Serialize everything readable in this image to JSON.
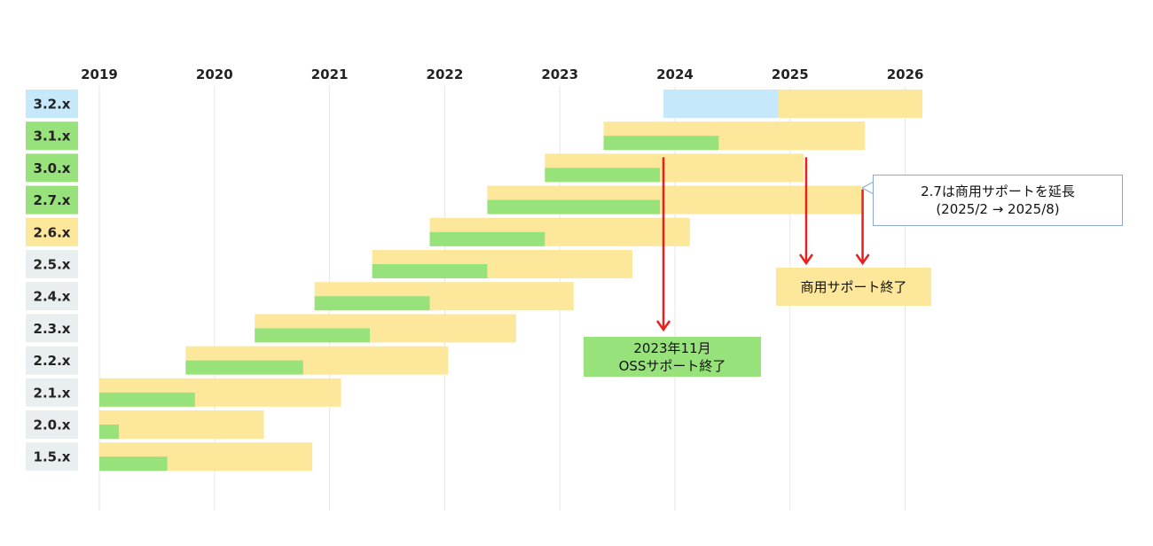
{
  "colors": {
    "oss": "#98e27c",
    "commercial": "#fde79a",
    "future": "#c6e8fb",
    "arrow": "#e8201e",
    "grid": "#e6e6e6",
    "label_neutral": "#e9eef0"
  },
  "chart_data": {
    "type": "bar",
    "orientation": "horizontal-timeline",
    "years": [
      "2019",
      "2020",
      "2021",
      "2022",
      "2023",
      "2024",
      "2025",
      "2026"
    ],
    "x_range": [
      2019.0,
      2026.0
    ],
    "rows": [
      {
        "label": "3.2.x",
        "label_color": "future",
        "segments": [
          {
            "kind": "future",
            "start": 2023.9,
            "end": 2024.9
          },
          {
            "kind": "commercial",
            "start": 2024.9,
            "end": 2026.15
          }
        ]
      },
      {
        "label": "3.1.x",
        "label_color": "oss",
        "segments": [
          {
            "kind": "commercial",
            "start": 2023.38,
            "end": 2025.65
          },
          {
            "kind": "oss",
            "start": 2023.38,
            "end": 2024.38
          }
        ]
      },
      {
        "label": "3.0.x",
        "label_color": "oss",
        "segments": [
          {
            "kind": "commercial",
            "start": 2022.87,
            "end": 2025.12
          },
          {
            "kind": "oss",
            "start": 2022.87,
            "end": 2023.87
          }
        ]
      },
      {
        "label": "2.7.x",
        "label_color": "oss",
        "segments": [
          {
            "kind": "commercial",
            "start": 2022.37,
            "end": 2025.62
          },
          {
            "kind": "oss",
            "start": 2022.37,
            "end": 2023.87
          }
        ]
      },
      {
        "label": "2.6.x",
        "label_color": "commercial",
        "segments": [
          {
            "kind": "commercial",
            "start": 2021.87,
            "end": 2024.13
          },
          {
            "kind": "oss",
            "start": 2021.87,
            "end": 2022.87
          }
        ]
      },
      {
        "label": "2.5.x",
        "label_color": "neutral",
        "segments": [
          {
            "kind": "commercial",
            "start": 2021.37,
            "end": 2023.63
          },
          {
            "kind": "oss",
            "start": 2021.37,
            "end": 2022.37
          }
        ]
      },
      {
        "label": "2.4.x",
        "label_color": "neutral",
        "segments": [
          {
            "kind": "commercial",
            "start": 2020.87,
            "end": 2023.12
          },
          {
            "kind": "oss",
            "start": 2020.87,
            "end": 2021.87
          }
        ]
      },
      {
        "label": "2.3.x",
        "label_color": "neutral",
        "segments": [
          {
            "kind": "commercial",
            "start": 2020.35,
            "end": 2022.62
          },
          {
            "kind": "oss",
            "start": 2020.35,
            "end": 2021.35
          }
        ]
      },
      {
        "label": "2.2.x",
        "label_color": "neutral",
        "segments": [
          {
            "kind": "commercial",
            "start": 2019.75,
            "end": 2022.03
          },
          {
            "kind": "oss",
            "start": 2019.75,
            "end": 2020.77
          }
        ]
      },
      {
        "label": "2.1.x",
        "label_color": "neutral",
        "segments": [
          {
            "kind": "commercial",
            "start": 2019.0,
            "end": 2021.1
          },
          {
            "kind": "oss",
            "start": 2019.0,
            "end": 2019.83
          }
        ]
      },
      {
        "label": "2.0.x",
        "label_color": "neutral",
        "segments": [
          {
            "kind": "commercial",
            "start": 2019.0,
            "end": 2020.43
          },
          {
            "kind": "oss",
            "start": 2019.0,
            "end": 2019.17
          }
        ]
      },
      {
        "label": "1.5.x",
        "label_color": "neutral",
        "segments": [
          {
            "kind": "commercial",
            "start": 2019.0,
            "end": 2020.85
          },
          {
            "kind": "oss",
            "start": 2019.0,
            "end": 2019.59
          }
        ]
      }
    ],
    "arrows": [
      {
        "x": 2023.9,
        "from_row": "3.0.x",
        "to": "oss_eol_annotation"
      },
      {
        "x": 2025.14,
        "from_row": "3.0.x",
        "to": "commercial_eol_annotation"
      },
      {
        "x": 2025.63,
        "from_row": "2.7.x",
        "to": "commercial_eol_annotation"
      }
    ]
  },
  "annotations": {
    "oss_eol_line1": "2023年11月",
    "oss_eol_line2": "OSSサポート終了",
    "commercial_eol": "商用サポート終了",
    "extension_line1": "2.7は商用サポートを延長",
    "extension_line2": "(2025/2 → 2025/8)"
  }
}
